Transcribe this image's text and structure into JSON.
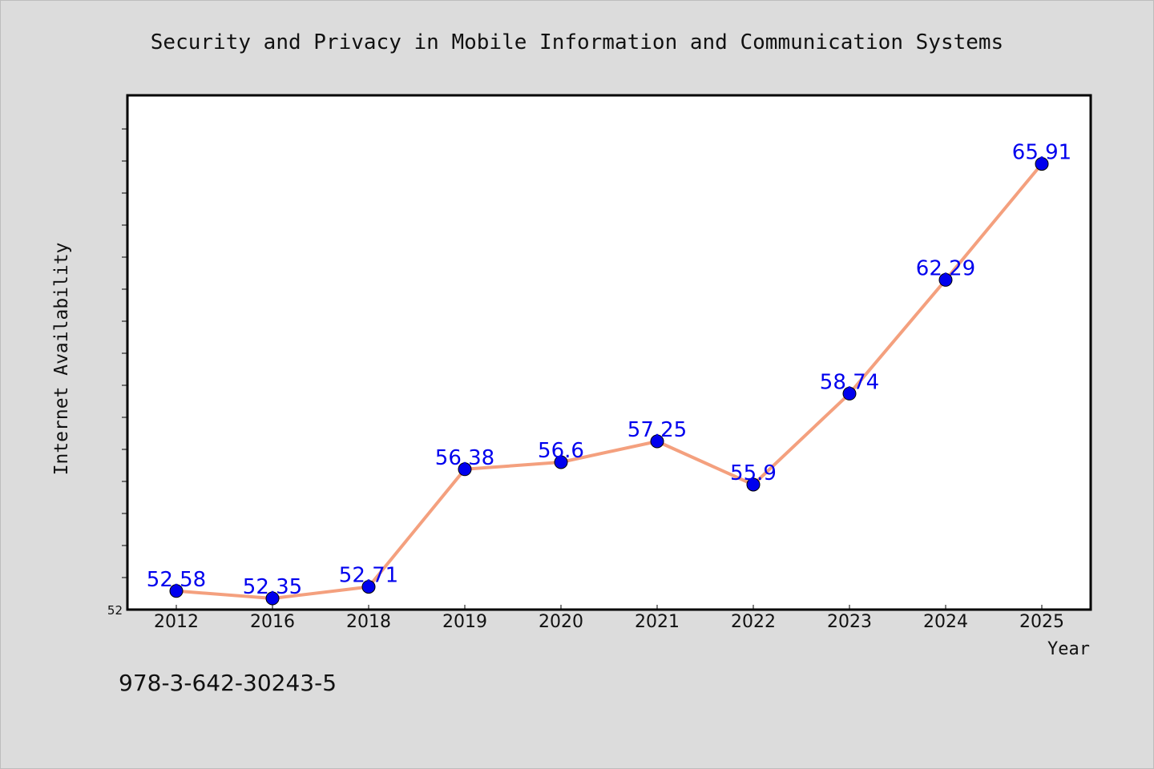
{
  "chart_data": {
    "type": "line",
    "title": "Security and Privacy in Mobile Information and Communication Systems",
    "xlabel": "Year",
    "ylabel": "Internet Availability",
    "categories": [
      "2012",
      "2016",
      "2018",
      "2019",
      "2020",
      "2021",
      "2022",
      "2023",
      "2024",
      "2025"
    ],
    "series": [
      {
        "values": [
          52.58,
          52.35,
          52.71,
          56.38,
          56.6,
          57.25,
          55.9,
          58.74,
          62.29,
          65.91
        ]
      }
    ],
    "data_labels": [
      "52.58",
      "52.35",
      "52.71",
      "56.38",
      "56.6",
      "57.25",
      "55.9",
      "58.74",
      "62.29",
      "65.91"
    ],
    "ylim": [
      52,
      68
    ],
    "y_tick_label": "52",
    "grid": false,
    "line_color": "#f4a07e",
    "marker_color": "#0000ee",
    "label_color": "#0000ee",
    "annotation": "978-3-642-30243-5"
  }
}
